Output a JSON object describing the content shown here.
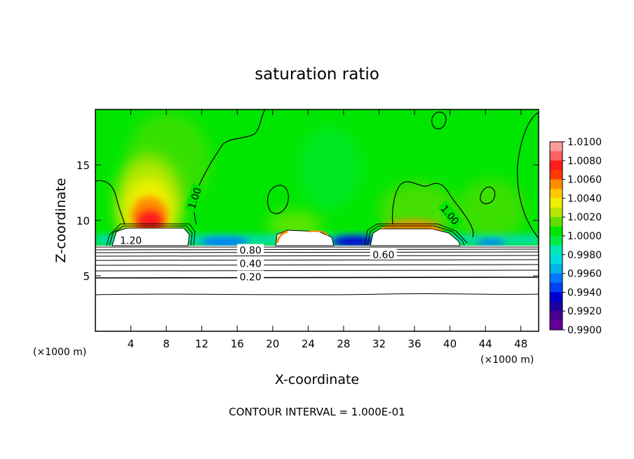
{
  "chart_data": {
    "type": "heatmap",
    "title": "saturation ratio",
    "xlabel": "X-coordinate",
    "ylabel": "Z-coordinate",
    "x_unit": "(×1000 m)",
    "z_unit": "(×1000 m)",
    "xlim": [
      0,
      50
    ],
    "ylim": [
      0,
      20
    ],
    "x_ticks": [
      4,
      8,
      12,
      16,
      20,
      24,
      28,
      32,
      36,
      40,
      44,
      48
    ],
    "y_ticks": [
      5,
      10,
      15
    ],
    "footer": "CONTOUR INTERVAL = 1.000E-01",
    "colorbar": {
      "min": 0.99,
      "max": 1.01,
      "labels": [
        "1.0100",
        "1.0080",
        "1.0060",
        "1.0040",
        "1.0020",
        "1.0000",
        "0.9980",
        "0.9960",
        "0.9940",
        "0.9920",
        "0.9900"
      ],
      "colors": [
        "#ff9a9a",
        "#ff6060",
        "#ff1c1c",
        "#ff3a00",
        "#ff8c00",
        "#ffc800",
        "#f0f000",
        "#b4e600",
        "#64dc00",
        "#00e600",
        "#00ec44",
        "#00e6b4",
        "#00dcdc",
        "#00b4e6",
        "#0078ff",
        "#0040f0",
        "#0000d2",
        "#1e00a0",
        "#480090",
        "#640096"
      ]
    },
    "contour_labels": [
      {
        "text": "1.00",
        "x": 11.2,
        "z": 12.0
      },
      {
        "text": "1.00",
        "x": 40.0,
        "z": 10.5
      },
      {
        "text": "1.20",
        "x": 4.0,
        "z": 8.2
      },
      {
        "text": "0.80",
        "x": 17.5,
        "z": 7.3
      },
      {
        "text": "0.60",
        "x": 32.5,
        "z": 6.9
      },
      {
        "text": "0.40",
        "x": 17.5,
        "z": 6.1
      },
      {
        "text": "0.20",
        "x": 17.5,
        "z": 4.9
      }
    ]
  }
}
